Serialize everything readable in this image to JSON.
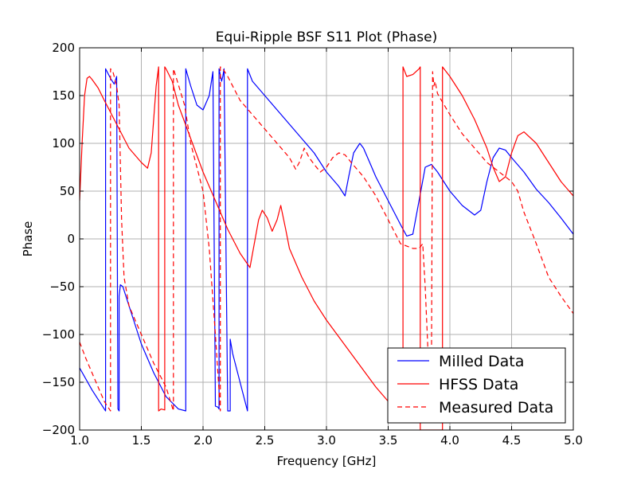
{
  "chart_data": {
    "type": "line",
    "title": "Equi-Ripple BSF S11 Plot (Phase)",
    "xlabel": "Frequency [GHz]",
    "ylabel": "Phase",
    "xlim": [
      1.0,
      5.0
    ],
    "ylim": [
      -200,
      200
    ],
    "xticks": [
      1.0,
      1.5,
      2.0,
      2.5,
      3.0,
      3.5,
      4.0,
      4.5,
      5.0
    ],
    "xtick_labels": [
      "1.0",
      "1.5",
      "2.0",
      "2.5",
      "3.0",
      "3.5",
      "4.0",
      "4.5",
      "5.0"
    ],
    "yticks": [
      -200,
      -150,
      -100,
      -50,
      0,
      50,
      100,
      150,
      200
    ],
    "ytick_labels": [
      "−200",
      "−150",
      "−100",
      "−50",
      "0",
      "50",
      "100",
      "150",
      "200"
    ],
    "grid": true,
    "legend_position": "lower-right",
    "series": [
      {
        "name": "Milled Data",
        "color": "#0000ff",
        "style": "solid",
        "x": [
          1.0,
          1.1,
          1.2,
          1.21,
          1.21,
          1.25,
          1.28,
          1.3,
          1.31,
          1.32,
          1.32,
          1.33,
          1.35,
          1.4,
          1.5,
          1.6,
          1.7,
          1.8,
          1.86,
          1.86,
          1.9,
          1.95,
          2.0,
          2.05,
          2.08,
          2.1,
          2.12,
          2.13,
          2.13,
          2.15,
          2.16,
          2.17,
          2.2,
          2.22,
          2.22,
          2.24,
          2.3,
          2.36,
          2.36,
          2.4,
          2.5,
          2.6,
          2.7,
          2.8,
          2.9,
          3.0,
          3.1,
          3.15,
          3.18,
          3.22,
          3.27,
          3.3,
          3.35,
          3.4,
          3.5,
          3.6,
          3.65,
          3.7,
          3.75,
          3.8,
          3.85,
          3.9,
          4.0,
          4.1,
          4.2,
          4.25,
          4.3,
          4.35,
          4.4,
          4.45,
          4.5,
          4.6,
          4.7,
          4.8,
          4.9,
          5.0
        ],
        "y": [
          -135,
          -158,
          -178,
          -180,
          178,
          168,
          162,
          170,
          -178,
          -180,
          -60,
          -48,
          -50,
          -70,
          -110,
          -140,
          -165,
          -178,
          -180,
          178,
          160,
          140,
          135,
          150,
          175,
          -175,
          -176,
          -178,
          178,
          165,
          170,
          178,
          -180,
          -180,
          -105,
          -120,
          -150,
          -180,
          178,
          165,
          150,
          135,
          120,
          105,
          90,
          70,
          55,
          45,
          65,
          90,
          100,
          95,
          80,
          65,
          40,
          15,
          3,
          5,
          40,
          75,
          78,
          70,
          50,
          35,
          25,
          30,
          60,
          85,
          95,
          93,
          85,
          70,
          52,
          38,
          22,
          5
        ]
      },
      {
        "name": "HFSS Data",
        "color": "#ff0000",
        "style": "solid",
        "x": [
          1.0,
          1.02,
          1.04,
          1.06,
          1.08,
          1.1,
          1.15,
          1.2,
          1.3,
          1.4,
          1.5,
          1.55,
          1.58,
          1.62,
          1.64,
          1.64,
          1.66,
          1.69,
          1.69,
          1.7,
          1.75,
          1.8,
          1.9,
          2.0,
          2.1,
          2.2,
          2.3,
          2.38,
          2.45,
          2.48,
          2.52,
          2.56,
          2.6,
          2.63,
          2.67,
          2.7,
          2.8,
          2.9,
          3.0,
          3.2,
          3.4,
          3.6,
          3.62,
          3.62,
          3.65,
          3.7,
          3.75,
          3.76,
          3.76,
          3.94,
          3.94,
          4.0,
          4.1,
          4.2,
          4.3,
          4.35,
          4.4,
          4.45,
          4.5,
          4.55,
          4.6,
          4.7,
          4.8,
          4.9,
          5.0
        ],
        "y": [
          40,
          100,
          150,
          168,
          170,
          167,
          158,
          145,
          120,
          95,
          80,
          74,
          90,
          160,
          180,
          -180,
          -178,
          -179,
          180,
          178,
          165,
          140,
          105,
          70,
          40,
          10,
          -15,
          -30,
          20,
          30,
          22,
          8,
          20,
          35,
          10,
          -10,
          -40,
          -65,
          -85,
          -120,
          -155,
          -185,
          -190,
          180,
          170,
          172,
          178,
          180,
          -200,
          -200,
          180,
          170,
          150,
          125,
          95,
          75,
          60,
          65,
          90,
          108,
          112,
          100,
          80,
          60,
          45
        ]
      },
      {
        "name": "Measured Data",
        "color": "#ff0000",
        "style": "dashed",
        "x": [
          1.0,
          1.05,
          1.1,
          1.15,
          1.2,
          1.24,
          1.25,
          1.25,
          1.27,
          1.3,
          1.32,
          1.34,
          1.36,
          1.4,
          1.5,
          1.6,
          1.7,
          1.76,
          1.76,
          1.78,
          1.85,
          1.9,
          2.0,
          2.05,
          2.1,
          2.14,
          2.14,
          2.16,
          2.2,
          2.3,
          2.4,
          2.5,
          2.6,
          2.7,
          2.75,
          2.78,
          2.82,
          2.86,
          2.9,
          2.95,
          3.0,
          3.05,
          3.1,
          3.15,
          3.2,
          3.3,
          3.4,
          3.5,
          3.6,
          3.7,
          3.75,
          3.78,
          3.8,
          3.82,
          3.83,
          3.84,
          3.85,
          3.86,
          3.87,
          3.88,
          3.9,
          4.0,
          4.1,
          4.2,
          4.3,
          4.4,
          4.5,
          4.55,
          4.6,
          4.7,
          4.8,
          4.9,
          5.0
        ],
        "y": [
          -108,
          -125,
          -140,
          -155,
          -170,
          -178,
          -180,
          178,
          175,
          160,
          140,
          20,
          -40,
          -70,
          -100,
          -130,
          -155,
          -180,
          178,
          170,
          140,
          100,
          50,
          -10,
          -100,
          -180,
          180,
          178,
          170,
          145,
          130,
          115,
          100,
          85,
          73,
          80,
          95,
          85,
          78,
          70,
          75,
          85,
          90,
          88,
          80,
          65,
          45,
          20,
          -5,
          -10,
          -10,
          -5,
          -50,
          -110,
          -150,
          -180,
          -150,
          175,
          160,
          165,
          152,
          130,
          110,
          95,
          80,
          70,
          60,
          50,
          28,
          -5,
          -40,
          -60,
          -78
        ]
      }
    ]
  }
}
